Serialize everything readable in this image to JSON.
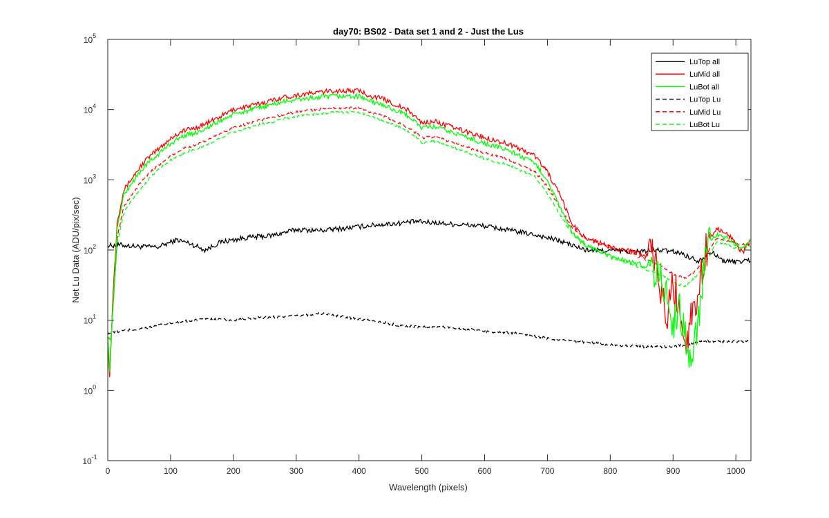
{
  "chart_data": {
    "type": "line",
    "title": "day70: BS02 - Data set 1 and 2 - Just the Lus",
    "xlabel": "Wavelength (pixels)",
    "ylabel": "Net Lu Data (ADU/pix/sec)",
    "xlim": [
      0,
      1024
    ],
    "ylim": [
      0.1,
      100000
    ],
    "yscale": "log",
    "grid": false,
    "legend_position": "top-right",
    "x_ticks": [
      0,
      100,
      200,
      300,
      400,
      500,
      600,
      700,
      800,
      900,
      1000
    ],
    "y_ticks": [
      {
        "value": 0.1,
        "base": "10",
        "exp": "-1"
      },
      {
        "value": 1,
        "base": "10",
        "exp": "0"
      },
      {
        "value": 10,
        "base": "10",
        "exp": "1"
      },
      {
        "value": 100,
        "base": "10",
        "exp": "2"
      },
      {
        "value": 1000,
        "base": "10",
        "exp": "3"
      },
      {
        "value": 10000,
        "base": "10",
        "exp": "4"
      },
      {
        "value": 100000,
        "base": "10",
        "exp": "5"
      }
    ],
    "series": [
      {
        "name": "LuTop  all",
        "color": "#000000",
        "dash": "solid",
        "x": [
          0,
          20,
          50,
          80,
          110,
          130,
          155,
          180,
          220,
          260,
          300,
          340,
          380,
          420,
          460,
          490,
          520,
          560,
          600,
          640,
          680,
          720,
          760,
          800,
          840,
          880,
          910,
          940,
          960,
          980,
          1000,
          1024
        ],
        "y": [
          115,
          118,
          112,
          110,
          140,
          125,
          100,
          130,
          150,
          160,
          195,
          190,
          205,
          225,
          240,
          255,
          245,
          230,
          220,
          190,
          165,
          135,
          100,
          98,
          95,
          100,
          92,
          70,
          95,
          70,
          68,
          72
        ]
      },
      {
        "name": "LuMid  all",
        "color": "#ff0000",
        "dash": "solid",
        "x": [
          0,
          3,
          8,
          15,
          25,
          40,
          60,
          80,
          100,
          120,
          140,
          160,
          180,
          200,
          240,
          280,
          320,
          360,
          400,
          420,
          440,
          480,
          500,
          520,
          560,
          600,
          640,
          680,
          700,
          720,
          740,
          760,
          800,
          840,
          870,
          890,
          900,
          910,
          920,
          930,
          940,
          950,
          960,
          970,
          980,
          990,
          1000,
          1010,
          1024
        ],
        "y": [
          5,
          1.5,
          20,
          250,
          700,
          1100,
          1900,
          2700,
          3900,
          5000,
          5500,
          6500,
          8000,
          10000,
          12000,
          15000,
          17000,
          18500,
          18500,
          15500,
          14000,
          9500,
          6500,
          6800,
          5200,
          4000,
          3200,
          2200,
          1300,
          600,
          230,
          150,
          110,
          95,
          75,
          10,
          35,
          15,
          5,
          12,
          25,
          80,
          160,
          200,
          180,
          160,
          130,
          90,
          140
        ]
      },
      {
        "name": "LuBot  all",
        "color": "#00ff00",
        "dash": "solid",
        "x": [
          0,
          3,
          8,
          15,
          25,
          40,
          60,
          80,
          100,
          120,
          140,
          160,
          180,
          200,
          240,
          280,
          320,
          360,
          400,
          420,
          440,
          480,
          500,
          520,
          560,
          600,
          640,
          680,
          700,
          720,
          740,
          760,
          800,
          840,
          870,
          890,
          900,
          910,
          920,
          930,
          940,
          950,
          960,
          970,
          980,
          990,
          1000,
          1010,
          1024
        ],
        "y": [
          6,
          2,
          15,
          200,
          600,
          950,
          1600,
          2300,
          3300,
          4200,
          4700,
          5600,
          7000,
          8500,
          10500,
          13000,
          14500,
          15500,
          15500,
          13000,
          11500,
          8000,
          5500,
          5700,
          4400,
          3300,
          2600,
          1700,
          1000,
          400,
          170,
          120,
          80,
          65,
          55,
          25,
          8,
          15,
          6,
          2,
          10,
          60,
          140,
          160,
          150,
          140,
          120,
          100,
          145
        ]
      },
      {
        "name": "LuTop  Lu",
        "color": "#000000",
        "dash": "dashed",
        "x": [
          0,
          20,
          50,
          100,
          150,
          200,
          250,
          300,
          340,
          380,
          420,
          460,
          500,
          540,
          600,
          650,
          700,
          750,
          800,
          850,
          900,
          950,
          1000,
          1024
        ],
        "y": [
          6.5,
          7,
          7.5,
          9,
          10.5,
          10,
          11,
          11.5,
          12.5,
          11,
          10,
          8.5,
          8,
          8,
          7,
          6.5,
          5.5,
          5,
          4.5,
          4.2,
          4.2,
          5,
          5,
          5
        ]
      },
      {
        "name": "LuMid  Lu",
        "color": "#ff0000",
        "dash": "dashed",
        "x": [
          0,
          5,
          15,
          25,
          40,
          60,
          80,
          100,
          120,
          140,
          160,
          180,
          200,
          240,
          280,
          320,
          360,
          400,
          420,
          440,
          480,
          500,
          520,
          560,
          600,
          640,
          680,
          700,
          720,
          740,
          760,
          800,
          840,
          880,
          900,
          920,
          940,
          960,
          970,
          990,
          1010,
          1024
        ],
        "y": [
          6,
          5,
          150,
          400,
          650,
          1100,
          1600,
          2200,
          2800,
          3100,
          3700,
          4600,
          5500,
          7000,
          8500,
          9800,
          10500,
          10500,
          9000,
          8000,
          5500,
          4000,
          4100,
          3200,
          2400,
          1900,
          1300,
          800,
          400,
          200,
          150,
          110,
          85,
          60,
          45,
          40,
          55,
          110,
          150,
          130,
          120,
          125
        ]
      },
      {
        "name": "LuBot  Lu",
        "color": "#00ff00",
        "dash": "dashed",
        "x": [
          0,
          5,
          15,
          25,
          40,
          60,
          80,
          100,
          120,
          140,
          160,
          180,
          200,
          240,
          280,
          320,
          360,
          400,
          420,
          440,
          480,
          500,
          520,
          560,
          600,
          640,
          680,
          700,
          720,
          740,
          760,
          800,
          840,
          880,
          900,
          920,
          940,
          960,
          970,
          990,
          1010,
          1024
        ],
        "y": [
          6,
          5,
          120,
          330,
          550,
          900,
          1400,
          1900,
          2400,
          2700,
          3200,
          4000,
          4800,
          6000,
          7400,
          8500,
          9200,
          9200,
          8000,
          7000,
          4800,
          3400,
          3500,
          2700,
          2000,
          1600,
          1100,
          650,
          320,
          170,
          120,
          80,
          60,
          45,
          35,
          30,
          45,
          90,
          130,
          115,
          100,
          115
        ]
      }
    ]
  }
}
